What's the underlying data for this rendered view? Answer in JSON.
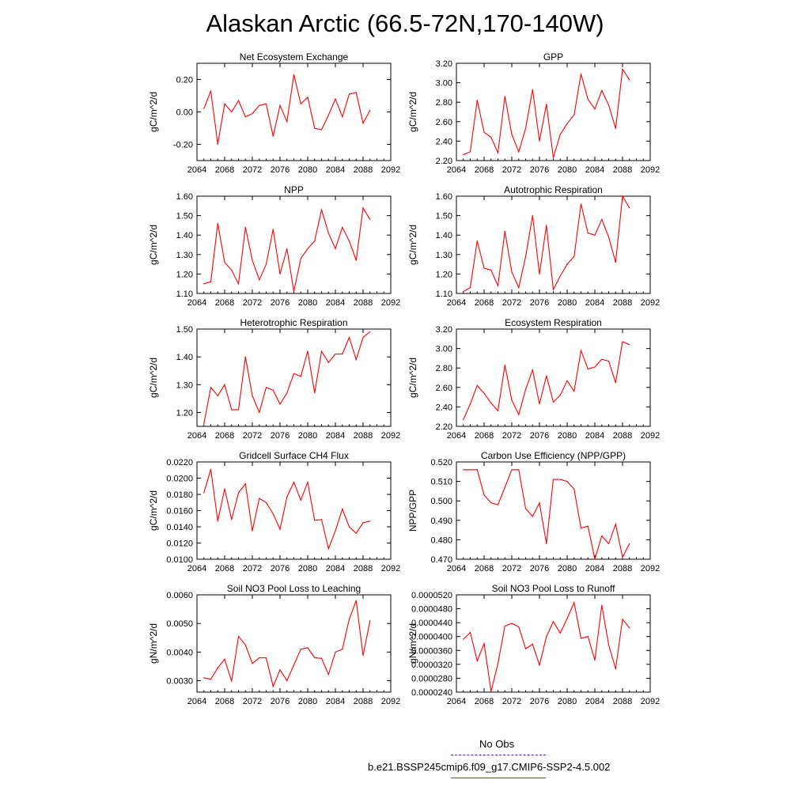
{
  "title": "Alaskan Arctic (66.5-72N,170-140W)",
  "legend": {
    "obs_label": "No Obs",
    "obs_color": "#3333cc",
    "model_label": "b.e21.BSSP245cmip6.f09_g17.CMIP6-SSP2-4.5.002",
    "model_color": "#ff0000"
  },
  "chart_data": [
    {
      "type": "line",
      "title": "Net Ecosystem Exchange",
      "ylabel": "gC/m^2/d",
      "xlim": [
        2064,
        2092
      ],
      "xticks": [
        "2064",
        "2068",
        "2072",
        "2076",
        "2080",
        "2084",
        "2088",
        "2092"
      ],
      "ylim": [
        -0.3,
        0.3
      ],
      "yticks": [
        "-0.20",
        "0.00",
        "0.20"
      ],
      "series": [
        {
          "x": [
            2065,
            2066,
            2067,
            2068,
            2069,
            2070,
            2071,
            2072,
            2073,
            2074,
            2075,
            2076,
            2077,
            2078,
            2079,
            2080,
            2081,
            2082,
            2083,
            2084,
            2085,
            2086,
            2087,
            2088,
            2089
          ],
          "values": [
            0.02,
            0.13,
            -0.2,
            0.05,
            0.0,
            0.07,
            -0.03,
            -0.01,
            0.04,
            0.05,
            -0.15,
            0.04,
            -0.06,
            0.23,
            0.05,
            0.09,
            -0.1,
            -0.11,
            -0.02,
            0.08,
            -0.03,
            0.11,
            0.12,
            -0.07,
            0.01
          ]
        }
      ]
    },
    {
      "type": "line",
      "title": "GPP",
      "ylabel": "gC/m^2/d",
      "xlim": [
        2064,
        2092
      ],
      "xticks": [
        "2064",
        "2068",
        "2072",
        "2076",
        "2080",
        "2084",
        "2088",
        "2092"
      ],
      "ylim": [
        2.2,
        3.2
      ],
      "yticks": [
        "2.20",
        "2.40",
        "2.60",
        "2.80",
        "3.00",
        "3.20"
      ],
      "series": [
        {
          "x": [
            2065,
            2066,
            2067,
            2068,
            2069,
            2070,
            2071,
            2072,
            2073,
            2074,
            2075,
            2076,
            2077,
            2078,
            2079,
            2080,
            2081,
            2082,
            2083,
            2084,
            2085,
            2086,
            2087,
            2088,
            2089
          ],
          "values": [
            2.26,
            2.29,
            2.82,
            2.49,
            2.44,
            2.28,
            2.86,
            2.47,
            2.29,
            2.53,
            2.93,
            2.4,
            2.78,
            2.23,
            2.47,
            2.58,
            2.67,
            3.09,
            2.83,
            2.73,
            2.92,
            2.77,
            2.53,
            3.14,
            3.03
          ]
        }
      ]
    },
    {
      "type": "line",
      "title": "NPP",
      "ylabel": "gC/m^2/d",
      "xlim": [
        2064,
        2092
      ],
      "xticks": [
        "2064",
        "2068",
        "2072",
        "2076",
        "2080",
        "2084",
        "2088",
        "2092"
      ],
      "ylim": [
        1.1,
        1.6
      ],
      "yticks": [
        "1.10",
        "1.20",
        "1.30",
        "1.40",
        "1.50",
        "1.60"
      ],
      "series": [
        {
          "x": [
            2065,
            2066,
            2067,
            2068,
            2069,
            2070,
            2071,
            2072,
            2073,
            2074,
            2075,
            2076,
            2077,
            2078,
            2079,
            2080,
            2081,
            2082,
            2083,
            2084,
            2085,
            2086,
            2087,
            2088,
            2089
          ],
          "values": [
            1.15,
            1.16,
            1.46,
            1.26,
            1.22,
            1.15,
            1.44,
            1.27,
            1.17,
            1.25,
            1.43,
            1.2,
            1.33,
            1.11,
            1.28,
            1.33,
            1.37,
            1.53,
            1.41,
            1.33,
            1.44,
            1.37,
            1.27,
            1.54,
            1.48
          ]
        }
      ]
    },
    {
      "type": "line",
      "title": "Autotrophic Respiration",
      "ylabel": "gC/m^2/d",
      "xlim": [
        2064,
        2092
      ],
      "xticks": [
        "2064",
        "2068",
        "2072",
        "2076",
        "2080",
        "2084",
        "2088",
        "2092"
      ],
      "ylim": [
        1.1,
        1.6
      ],
      "yticks": [
        "1.10",
        "1.20",
        "1.30",
        "1.40",
        "1.50",
        "1.60"
      ],
      "series": [
        {
          "x": [
            2065,
            2066,
            2067,
            2068,
            2069,
            2070,
            2071,
            2072,
            2073,
            2074,
            2075,
            2076,
            2077,
            2078,
            2079,
            2080,
            2081,
            2082,
            2083,
            2084,
            2085,
            2086,
            2087,
            2088,
            2089
          ],
          "values": [
            1.11,
            1.13,
            1.37,
            1.23,
            1.22,
            1.14,
            1.42,
            1.21,
            1.13,
            1.29,
            1.5,
            1.2,
            1.45,
            1.12,
            1.19,
            1.25,
            1.29,
            1.56,
            1.41,
            1.4,
            1.48,
            1.39,
            1.26,
            1.6,
            1.54
          ]
        }
      ]
    },
    {
      "type": "line",
      "title": "Heterotrophic Respiration",
      "ylabel": "gC/m^2/d",
      "xlim": [
        2064,
        2092
      ],
      "xticks": [
        "2064",
        "2068",
        "2072",
        "2076",
        "2080",
        "2084",
        "2088",
        "2092"
      ],
      "ylim": [
        1.15,
        1.5
      ],
      "yticks": [
        "1.20",
        "1.30",
        "1.40",
        "1.50"
      ],
      "series": [
        {
          "x": [
            2065,
            2066,
            2067,
            2068,
            2069,
            2070,
            2071,
            2072,
            2073,
            2074,
            2075,
            2076,
            2077,
            2078,
            2079,
            2080,
            2081,
            2082,
            2083,
            2084,
            2085,
            2086,
            2087,
            2088,
            2089
          ],
          "values": [
            1.16,
            1.29,
            1.26,
            1.3,
            1.21,
            1.21,
            1.4,
            1.26,
            1.2,
            1.29,
            1.28,
            1.23,
            1.27,
            1.34,
            1.33,
            1.42,
            1.27,
            1.42,
            1.38,
            1.41,
            1.41,
            1.47,
            1.39,
            1.47,
            1.49
          ]
        }
      ]
    },
    {
      "type": "line",
      "title": "Ecosystem Respiration",
      "ylabel": "gC/m^2/d",
      "xlim": [
        2064,
        2092
      ],
      "xticks": [
        "2064",
        "2068",
        "2072",
        "2076",
        "2080",
        "2084",
        "2088",
        "2092"
      ],
      "ylim": [
        2.2,
        3.2
      ],
      "yticks": [
        "2.20",
        "2.40",
        "2.60",
        "2.80",
        "3.00",
        "3.20"
      ],
      "series": [
        {
          "x": [
            2065,
            2066,
            2067,
            2068,
            2069,
            2070,
            2071,
            2072,
            2073,
            2074,
            2075,
            2076,
            2077,
            2078,
            2079,
            2080,
            2081,
            2082,
            2083,
            2084,
            2085,
            2086,
            2087,
            2088,
            2089
          ],
          "values": [
            2.27,
            2.43,
            2.62,
            2.54,
            2.44,
            2.36,
            2.83,
            2.47,
            2.32,
            2.58,
            2.78,
            2.43,
            2.72,
            2.45,
            2.52,
            2.67,
            2.56,
            2.98,
            2.79,
            2.81,
            2.89,
            2.87,
            2.65,
            3.07,
            3.04
          ]
        }
      ]
    },
    {
      "type": "line",
      "title": "Gridcell Surface CH4 Flux",
      "ylabel": "gC/m^2/d",
      "xlim": [
        2064,
        2092
      ],
      "xticks": [
        "2064",
        "2068",
        "2072",
        "2076",
        "2080",
        "2084",
        "2088",
        "2092"
      ],
      "ylim": [
        0.01,
        0.022
      ],
      "yticks": [
        "0.0100",
        "0.0120",
        "0.0140",
        "0.0160",
        "0.0180",
        "0.0200",
        "0.0220"
      ],
      "series": [
        {
          "x": [
            2065,
            2066,
            2067,
            2068,
            2069,
            2070,
            2071,
            2072,
            2073,
            2074,
            2075,
            2076,
            2077,
            2078,
            2079,
            2080,
            2081,
            2082,
            2083,
            2084,
            2085,
            2086,
            2087,
            2088,
            2089
          ],
          "values": [
            0.0182,
            0.0211,
            0.0147,
            0.0187,
            0.0149,
            0.0182,
            0.0193,
            0.0135,
            0.0175,
            0.017,
            0.0156,
            0.0137,
            0.0177,
            0.0195,
            0.0173,
            0.0195,
            0.0148,
            0.0149,
            0.0113,
            0.0135,
            0.0162,
            0.014,
            0.0132,
            0.0145,
            0.0147
          ]
        }
      ]
    },
    {
      "type": "line",
      "title": "Carbon Use Efficiency (NPP/GPP)",
      "ylabel": "NPP/GPP",
      "xlim": [
        2064,
        2092
      ],
      "xticks": [
        "2064",
        "2068",
        "2072",
        "2076",
        "2080",
        "2084",
        "2088",
        "2092"
      ],
      "ylim": [
        0.47,
        0.52
      ],
      "yticks": [
        "0.470",
        "0.480",
        "0.490",
        "0.500",
        "0.510",
        "0.520"
      ],
      "series": [
        {
          "x": [
            2065,
            2066,
            2067,
            2068,
            2069,
            2070,
            2071,
            2072,
            2073,
            2074,
            2075,
            2076,
            2077,
            2078,
            2079,
            2080,
            2081,
            2082,
            2083,
            2084,
            2085,
            2086,
            2087,
            2088,
            2089
          ],
          "values": [
            0.516,
            0.516,
            0.516,
            0.503,
            0.499,
            0.498,
            0.507,
            0.516,
            0.516,
            0.496,
            0.492,
            0.499,
            0.478,
            0.511,
            0.511,
            0.51,
            0.506,
            0.486,
            0.487,
            0.47,
            0.482,
            0.478,
            0.488,
            0.471,
            0.478
          ]
        }
      ]
    },
    {
      "type": "line",
      "title": "Soil NO3 Pool Loss to Leaching",
      "ylabel": "gN/m^2/d",
      "xlim": [
        2064,
        2092
      ],
      "xticks": [
        "2064",
        "2068",
        "2072",
        "2076",
        "2080",
        "2084",
        "2088",
        "2092"
      ],
      "ylim": [
        0.0026,
        0.006
      ],
      "yticks": [
        "0.0030",
        "0.0040",
        "0.0050",
        "0.0060"
      ],
      "series": [
        {
          "x": [
            2065,
            2066,
            2067,
            2068,
            2069,
            2070,
            2071,
            2072,
            2073,
            2074,
            2075,
            2076,
            2077,
            2078,
            2079,
            2080,
            2081,
            2082,
            2083,
            2084,
            2085,
            2086,
            2087,
            2088,
            2089
          ],
          "values": [
            0.0031,
            0.00305,
            0.00345,
            0.00375,
            0.00298,
            0.00455,
            0.00425,
            0.0036,
            0.0038,
            0.0038,
            0.0028,
            0.00338,
            0.003,
            0.00355,
            0.0041,
            0.00415,
            0.0038,
            0.00378,
            0.00322,
            0.004,
            0.0041,
            0.00515,
            0.0058,
            0.00388,
            0.0051
          ]
        }
      ]
    },
    {
      "type": "line",
      "title": "Soil NO3 Pool Loss to Runoff",
      "ylabel": "gN/m^2/d",
      "xlim": [
        2064,
        2092
      ],
      "xticks": [
        "2064",
        "2068",
        "2072",
        "2076",
        "2080",
        "2084",
        "2088",
        "2092"
      ],
      "ylim": [
        2.4e-05,
        5.2e-05
      ],
      "yticks": [
        "0.0000240",
        "0.0000280",
        "0.0000320",
        "0.0000360",
        "0.0000400",
        "0.0000440",
        "0.0000480",
        "0.0000520"
      ],
      "series": [
        {
          "x": [
            2065,
            2066,
            2067,
            2068,
            2069,
            2070,
            2071,
            2072,
            2073,
            2074,
            2075,
            2076,
            2077,
            2078,
            2079,
            2080,
            2081,
            2082,
            2083,
            2084,
            2085,
            2086,
            2087,
            2088,
            2089
          ],
          "values": [
            3.92e-05,
            4.12e-05,
            3.3e-05,
            3.8e-05,
            2.42e-05,
            3.22e-05,
            4.3e-05,
            4.38e-05,
            4.28e-05,
            3.65e-05,
            3.78e-05,
            3.18e-05,
            4e-05,
            4.43e-05,
            4.1e-05,
            4.52e-05,
            4.98e-05,
            3.95e-05,
            4e-05,
            3.32e-05,
            4.9e-05,
            3.76e-05,
            3.07e-05,
            4.5e-05,
            4.25e-05
          ]
        }
      ]
    }
  ]
}
